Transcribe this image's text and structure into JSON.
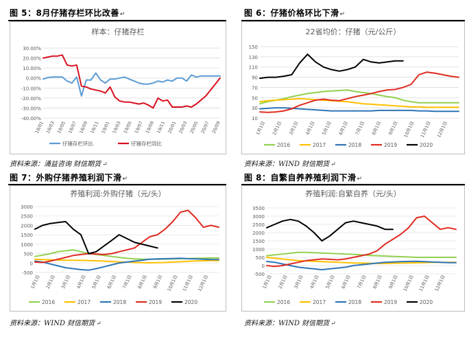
{
  "panels": [
    {
      "heading": "图 5：8月仔猪存栏环比改善",
      "source": "资料来源：涌益咨询 财信期货",
      "chart_data": {
        "type": "line",
        "title": "样本：仔猪存栏",
        "x_tick_labels": [
          "18/01",
          "18/03",
          "18/05",
          "18/07",
          "18/09",
          "18/11",
          "19/01",
          "19/03",
          "19/05",
          "19/07",
          "19/09",
          "19/11",
          "20/01",
          "20/03",
          "20/05",
          "20/07",
          "20/09"
        ],
        "y_tick_labels": [
          "30.00%",
          "20.00%",
          "10.00%",
          "0.00%",
          "-10.00%",
          "-20.00%",
          "-30.00%",
          "-40.00%"
        ],
        "ylim": [
          -40,
          30
        ],
        "series": [
          {
            "name": "仔猪存栏环比",
            "color": "#5b9bd5",
            "values": [
              -1,
              0.5,
              1,
              1,
              1,
              -3,
              -5,
              1,
              -18,
              -2,
              -2,
              5,
              -2,
              -5,
              -1,
              -1,
              0,
              1,
              -1,
              -3,
              -5,
              -6,
              -6,
              -5,
              -3,
              -4,
              -2,
              -3,
              0,
              0,
              -3,
              3,
              1,
              2,
              2,
              2,
              2,
              2
            ]
          },
          {
            "name": "仔猪存栏同比",
            "color": "#d8101e",
            "values": [
              20,
              21,
              22,
              22,
              23,
              13,
              12,
              13,
              -8,
              -9,
              -11,
              -12,
              -13,
              -15,
              -9,
              -19,
              -23,
              -24,
              -24,
              -25,
              -26,
              -25,
              -27,
              -30,
              -20,
              -23,
              -22,
              -29,
              -29,
              -29,
              -28,
              -29,
              -26,
              -22,
              -18,
              -12,
              -6,
              0
            ]
          }
        ]
      }
    },
    {
      "heading": "图 6：仔猪价格环比下滑",
      "source": "资料来源：WIND 财信期货",
      "chart_data": {
        "type": "line",
        "title": "22省均价：仔猪（元/公斤）",
        "x_tick_labels": [
          "1月1日",
          "2月1日",
          "3月1日",
          "4月1日",
          "5月1日",
          "6月1日",
          "7月1日",
          "8月1日",
          "9月1日",
          "10月1日",
          "11月1日",
          "12月1日"
        ],
        "y_tick_labels": [
          "150",
          "130",
          "110",
          "90",
          "70",
          "50",
          "30",
          "10"
        ],
        "ylim": [
          10,
          150
        ],
        "series": [
          {
            "name": "2016",
            "color": "#92d050",
            "values": [
              38,
              42,
              45,
              48,
              52,
              55,
              58,
              60,
              62,
              63,
              64,
              65,
              62,
              60,
              58,
              55,
              52,
              50,
              45,
              42,
              40,
              40,
              40,
              40,
              40,
              40
            ]
          },
          {
            "name": "2017",
            "color": "#ffc000",
            "values": [
              42,
              44,
              45,
              46,
              47,
              48,
              47,
              46,
              45,
              44,
              43,
              42,
              40,
              38,
              37,
              36,
              35,
              34,
              33,
              32,
              32,
              31,
              31,
              31,
              31,
              31
            ]
          },
          {
            "name": "2018",
            "color": "#2e75b6",
            "values": [
              28,
              29,
              30,
              30,
              29,
              28,
              27,
              26,
              25,
              24,
              24,
              24,
              24,
              24,
              24,
              25,
              25,
              25,
              25,
              25,
              24,
              24,
              23,
              23,
              23,
              23
            ]
          },
          {
            "name": "2019",
            "color": "#e02a21",
            "values": [
              22,
              21,
              22,
              24,
              28,
              35,
              40,
              45,
              47,
              45,
              44,
              48,
              52,
              55,
              58,
              62,
              65,
              66,
              70,
              76,
              95,
              100,
              98,
              95,
              92,
              90
            ]
          },
          {
            "name": "2020",
            "color": "#000000",
            "values": [
              88,
              90,
              90,
              92,
              95,
              118,
              135,
              120,
              110,
              105,
              102,
              105,
              110,
              125,
              120,
              118,
              120,
              122,
              122
            ]
          }
        ]
      }
    },
    {
      "heading": "图 7：外购仔猪养殖利润下滑",
      "source": "资料来源：WIND 财信期货",
      "chart_data": {
        "type": "line",
        "title": "养殖利润:外购仔猪（元/头）",
        "x_tick_labels": [
          "1月1日",
          "2月1日",
          "3月1日",
          "4月1日",
          "5月1日",
          "6月1日",
          "7月1日",
          "8月1日",
          "9月1日",
          "10月1日",
          "11月1日",
          "12月1日"
        ],
        "y_tick_labels": [
          "3000",
          "2500",
          "2000",
          "1500",
          "1000",
          "500",
          "0",
          "-500"
        ],
        "ylim": [
          -500,
          3000
        ],
        "series": [
          {
            "name": "2016",
            "color": "#92d050",
            "values": [
              350,
              420,
              500,
              600,
              650,
              700,
              600,
              500,
              450,
              400,
              350,
              300,
              250,
              220,
              200,
              200,
              200,
              210,
              220,
              230,
              240,
              250,
              260,
              270,
              270
            ]
          },
          {
            "name": "2017",
            "color": "#ffc000",
            "values": [
              200,
              180,
              170,
              160,
              150,
              150,
              140,
              130,
              120,
              100,
              80,
              60,
              50,
              30,
              20,
              10,
              20,
              30,
              50,
              70,
              90,
              110,
              120,
              130,
              130
            ]
          },
          {
            "name": "2018",
            "color": "#2e75b6",
            "values": [
              100,
              50,
              -50,
              -150,
              -250,
              -300,
              -350,
              -380,
              -300,
              -200,
              -100,
              0,
              50,
              100,
              150,
              200,
              220,
              230,
              240,
              250,
              230,
              220,
              200,
              180,
              180
            ]
          },
          {
            "name": "2019",
            "color": "#e02a21",
            "values": [
              50,
              30,
              100,
              200,
              300,
              400,
              450,
              500,
              480,
              450,
              500,
              600,
              700,
              800,
              1100,
              1400,
              1500,
              1800,
              2200,
              2700,
              2800,
              2400,
              1900,
              2000,
              1900
            ]
          },
          {
            "name": "2020",
            "color": "#000000",
            "values": [
              1800,
              2000,
              2100,
              2150,
              2200,
              1800,
              1500,
              500,
              600,
              900,
              1200,
              1500,
              1300,
              1100,
              1000,
              900,
              800
            ]
          }
        ]
      }
    },
    {
      "heading": "图 8：自繁自养养殖利润下滑",
      "source": "资料来源：WIND 财信期货",
      "chart_data": {
        "type": "line",
        "title": "养殖利润:自繁自养（元/头）",
        "x_tick_labels": [
          "1月1日",
          "2月1日",
          "3月1日",
          "4月1日",
          "5月1日",
          "6月1日",
          "7月1日",
          "8月1日",
          "9月1日",
          "10月1日",
          "11月1日",
          "12月1日"
        ],
        "y_tick_labels": [
          "3500",
          "3000",
          "2500",
          "2000",
          "1500",
          "1000",
          "500",
          "0",
          "-500"
        ],
        "ylim": [
          -500,
          3500
        ],
        "series": [
          {
            "name": "2016",
            "color": "#92d050",
            "values": [
              600,
              650,
              700,
              750,
              800,
              800,
              780,
              760,
              740,
              720,
              700,
              680,
              650,
              620,
              600,
              580,
              560,
              540,
              520,
              500,
              500,
              500,
              500,
              500,
              500
            ]
          },
          {
            "name": "2017",
            "color": "#ffc000",
            "values": [
              500,
              450,
              400,
              350,
              300,
              280,
              260,
              240,
              220,
              200,
              180,
              160,
              150,
              140,
              130,
              130,
              140,
              150,
              160,
              170,
              180,
              190,
              200,
              200,
              200
            ]
          },
          {
            "name": "2018",
            "color": "#2e75b6",
            "values": [
              250,
              200,
              100,
              0,
              -100,
              -150,
              -200,
              -250,
              -200,
              -150,
              -100,
              0,
              50,
              100,
              150,
              200,
              220,
              240,
              250,
              260,
              240,
              220,
              200,
              180,
              180
            ]
          },
          {
            "name": "2019",
            "color": "#e02a21",
            "values": [
              0,
              -50,
              0,
              100,
              200,
              300,
              350,
              400,
              380,
              350,
              400,
              500,
              600,
              700,
              900,
              1300,
              1600,
              1900,
              2300,
              2900,
              3000,
              2600,
              2200,
              2300,
              2200
            ]
          },
          {
            "name": "2020",
            "color": "#000000",
            "values": [
              2300,
              2500,
              2700,
              2800,
              2700,
              2400,
              2000,
              1500,
              1800,
              2200,
              2600,
              2700,
              2600,
              2500,
              2400,
              2200,
              2200
            ]
          }
        ]
      }
    }
  ]
}
